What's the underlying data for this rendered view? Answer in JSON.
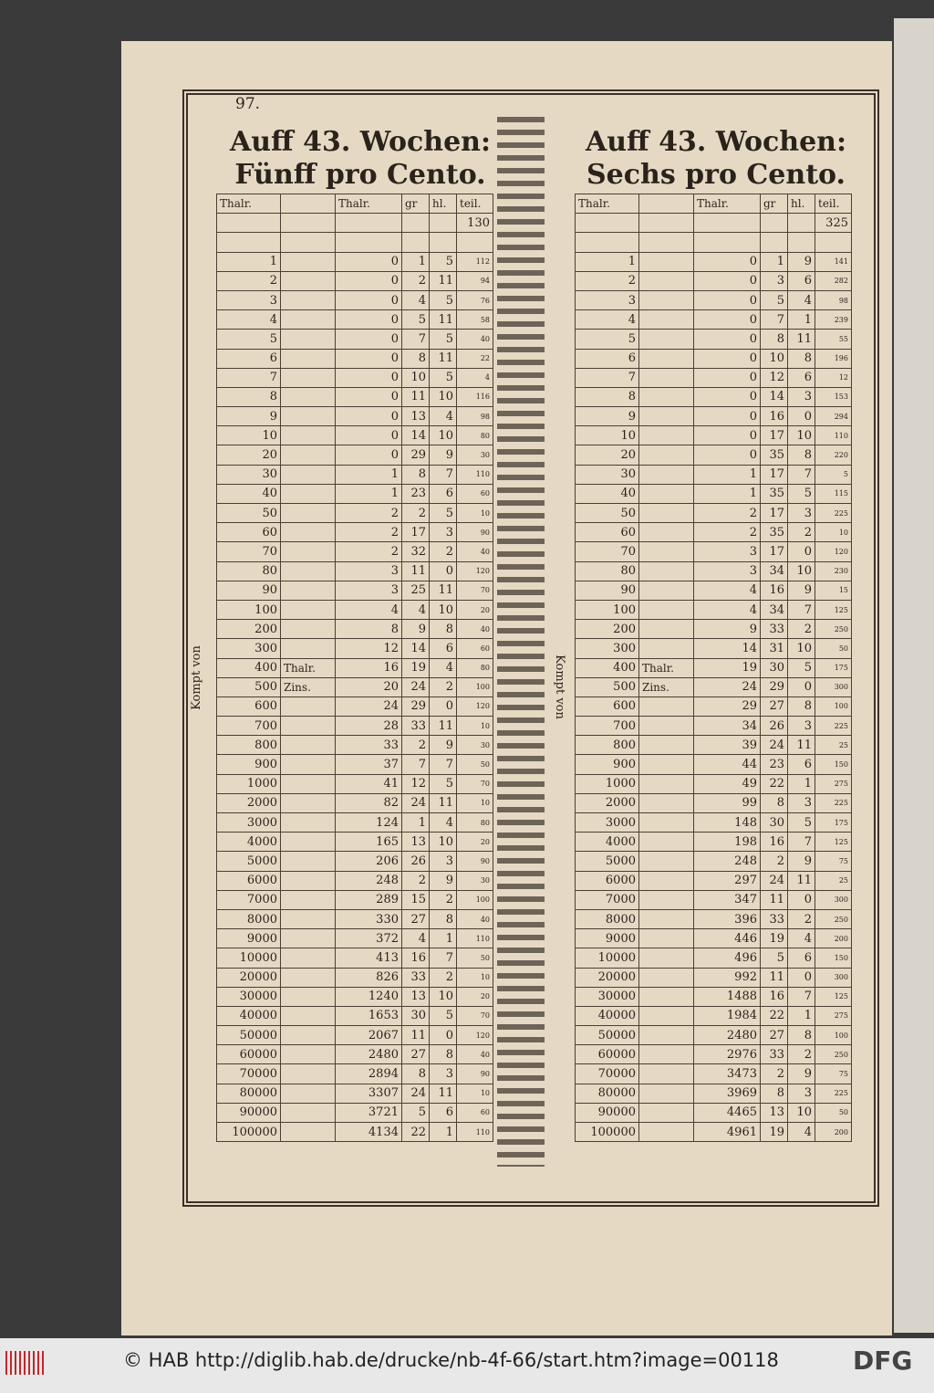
{
  "page_number": "97.",
  "side_label": "Kompt von",
  "tables": [
    {
      "title": "Auff 43. Wochen:",
      "subtitle": "Fünff pro Cento.",
      "header": [
        "Thalr.",
        "Thalr.",
        "gr",
        "hl.",
        "teil."
      ],
      "teil_start": 130,
      "rows": [
        [
          1,
          null,
          0,
          1,
          5,
          112
        ],
        [
          2,
          null,
          0,
          2,
          11,
          94
        ],
        [
          3,
          null,
          0,
          4,
          5,
          76
        ],
        [
          4,
          null,
          0,
          5,
          11,
          58
        ],
        [
          5,
          null,
          0,
          7,
          5,
          40
        ],
        [
          6,
          null,
          0,
          8,
          11,
          22
        ],
        [
          7,
          null,
          0,
          10,
          5,
          4
        ],
        [
          8,
          null,
          0,
          11,
          10,
          116
        ],
        [
          9,
          null,
          0,
          13,
          4,
          98
        ],
        [
          10,
          null,
          0,
          14,
          10,
          80
        ],
        [
          20,
          null,
          0,
          29,
          9,
          30
        ],
        [
          30,
          null,
          1,
          8,
          7,
          110
        ],
        [
          40,
          null,
          1,
          23,
          6,
          60
        ],
        [
          50,
          null,
          2,
          2,
          5,
          10
        ],
        [
          60,
          null,
          2,
          17,
          3,
          90
        ],
        [
          70,
          null,
          2,
          32,
          2,
          40
        ],
        [
          80,
          null,
          3,
          11,
          0,
          120
        ],
        [
          90,
          null,
          3,
          25,
          11,
          70
        ],
        [
          100,
          null,
          4,
          4,
          10,
          20
        ],
        [
          200,
          null,
          8,
          9,
          8,
          40
        ],
        [
          300,
          null,
          12,
          14,
          6,
          60
        ],
        [
          400,
          "Thalr.",
          16,
          19,
          4,
          80
        ],
        [
          500,
          "Zins.",
          20,
          24,
          2,
          100
        ],
        [
          600,
          null,
          24,
          29,
          0,
          120
        ],
        [
          700,
          null,
          28,
          33,
          11,
          10
        ],
        [
          800,
          null,
          33,
          2,
          9,
          30
        ],
        [
          900,
          null,
          37,
          7,
          7,
          50
        ],
        [
          1000,
          null,
          41,
          12,
          5,
          70
        ],
        [
          2000,
          null,
          82,
          24,
          11,
          10
        ],
        [
          3000,
          null,
          124,
          1,
          4,
          80
        ],
        [
          4000,
          null,
          165,
          13,
          10,
          20
        ],
        [
          5000,
          null,
          206,
          26,
          3,
          90
        ],
        [
          6000,
          null,
          248,
          2,
          9,
          30
        ],
        [
          7000,
          null,
          289,
          15,
          2,
          100
        ],
        [
          8000,
          null,
          330,
          27,
          8,
          40
        ],
        [
          9000,
          null,
          372,
          4,
          1,
          110
        ],
        [
          10000,
          null,
          413,
          16,
          7,
          50
        ],
        [
          20000,
          null,
          826,
          33,
          2,
          10
        ],
        [
          30000,
          null,
          1240,
          13,
          10,
          20
        ],
        [
          40000,
          null,
          1653,
          30,
          5,
          70
        ],
        [
          50000,
          null,
          2067,
          11,
          0,
          120
        ],
        [
          60000,
          null,
          2480,
          27,
          8,
          40
        ],
        [
          70000,
          null,
          2894,
          8,
          3,
          90
        ],
        [
          80000,
          null,
          3307,
          24,
          11,
          10
        ],
        [
          90000,
          null,
          3721,
          5,
          6,
          60
        ],
        [
          100000,
          null,
          4134,
          22,
          1,
          110
        ]
      ]
    },
    {
      "title": "Auff 43. Wochen:",
      "subtitle": "Sechs pro Cento.",
      "header": [
        "Thalr.",
        "Thalr.",
        "gr",
        "hl.",
        "teil."
      ],
      "teil_start": 325,
      "rows": [
        [
          1,
          null,
          0,
          1,
          9,
          141
        ],
        [
          2,
          null,
          0,
          3,
          6,
          282
        ],
        [
          3,
          null,
          0,
          5,
          4,
          98
        ],
        [
          4,
          null,
          0,
          7,
          1,
          239
        ],
        [
          5,
          null,
          0,
          8,
          11,
          55
        ],
        [
          6,
          null,
          0,
          10,
          8,
          196
        ],
        [
          7,
          null,
          0,
          12,
          6,
          12
        ],
        [
          8,
          null,
          0,
          14,
          3,
          153
        ],
        [
          9,
          null,
          0,
          16,
          0,
          294
        ],
        [
          10,
          null,
          0,
          17,
          10,
          110
        ],
        [
          20,
          null,
          0,
          35,
          8,
          220
        ],
        [
          30,
          null,
          1,
          17,
          7,
          5
        ],
        [
          40,
          null,
          1,
          35,
          5,
          115
        ],
        [
          50,
          null,
          2,
          17,
          3,
          225
        ],
        [
          60,
          null,
          2,
          35,
          2,
          10
        ],
        [
          70,
          null,
          3,
          17,
          0,
          120
        ],
        [
          80,
          null,
          3,
          34,
          10,
          230
        ],
        [
          90,
          null,
          4,
          16,
          9,
          15
        ],
        [
          100,
          null,
          4,
          34,
          7,
          125
        ],
        [
          200,
          null,
          9,
          33,
          2,
          250
        ],
        [
          300,
          null,
          14,
          31,
          10,
          50
        ],
        [
          400,
          "Thalr.",
          19,
          30,
          5,
          175
        ],
        [
          500,
          "Zins.",
          24,
          29,
          0,
          300
        ],
        [
          600,
          null,
          29,
          27,
          8,
          100
        ],
        [
          700,
          null,
          34,
          26,
          3,
          225
        ],
        [
          800,
          null,
          39,
          24,
          11,
          25
        ],
        [
          900,
          null,
          44,
          23,
          6,
          150
        ],
        [
          1000,
          null,
          49,
          22,
          1,
          275
        ],
        [
          2000,
          null,
          99,
          8,
          3,
          225
        ],
        [
          3000,
          null,
          148,
          30,
          5,
          175
        ],
        [
          4000,
          null,
          198,
          16,
          7,
          125
        ],
        [
          5000,
          null,
          248,
          2,
          9,
          75
        ],
        [
          6000,
          null,
          297,
          24,
          11,
          25
        ],
        [
          7000,
          null,
          347,
          11,
          0,
          300
        ],
        [
          8000,
          null,
          396,
          33,
          2,
          250
        ],
        [
          9000,
          null,
          446,
          19,
          4,
          200
        ],
        [
          10000,
          null,
          496,
          5,
          6,
          150
        ],
        [
          20000,
          null,
          992,
          11,
          0,
          300
        ],
        [
          30000,
          null,
          1488,
          16,
          7,
          125
        ],
        [
          40000,
          null,
          1984,
          22,
          1,
          275
        ],
        [
          50000,
          null,
          2480,
          27,
          8,
          100
        ],
        [
          60000,
          null,
          2976,
          33,
          2,
          250
        ],
        [
          70000,
          null,
          3473,
          2,
          9,
          75
        ],
        [
          80000,
          null,
          3969,
          8,
          3,
          225
        ],
        [
          90000,
          null,
          4465,
          13,
          10,
          50
        ],
        [
          100000,
          null,
          4961,
          19,
          4,
          200
        ]
      ]
    }
  ],
  "footer": {
    "credit": "© HAB http://diglib.hab.de/drucke/nb-4f-66/start.htm?image=00118",
    "logo": "DFG"
  }
}
